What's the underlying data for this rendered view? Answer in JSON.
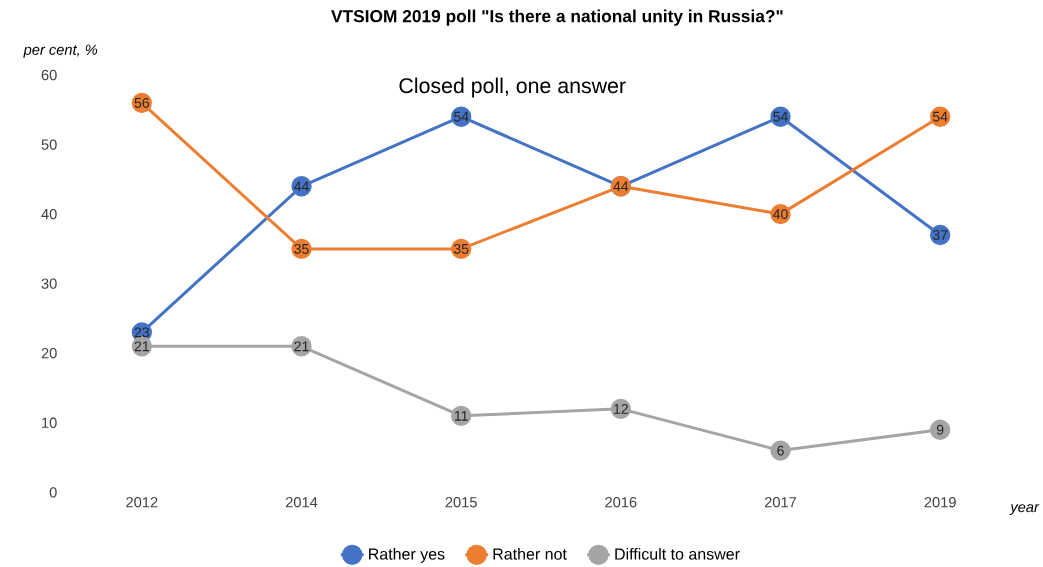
{
  "chart_data": {
    "type": "line",
    "title": "VTSIOM 2019 poll \"Is there a national unity in Russia?\"",
    "subtitle": "Closed poll, one answer",
    "ylabel": "per cent, %",
    "xlabel": "year",
    "categories": [
      "2012",
      "2014",
      "2015",
      "2016",
      "2017",
      "2019"
    ],
    "series": [
      {
        "name": "Rather yes",
        "color": "#4472c4",
        "values": [
          23,
          44,
          54,
          44,
          54,
          37
        ],
        "value_labels": [
          "23",
          "44",
          "54",
          "44",
          "54",
          "37"
        ]
      },
      {
        "name": "Rather not",
        "color": "#ed7d31",
        "values": [
          56,
          35,
          35,
          44,
          40,
          54
        ],
        "value_labels": [
          "56",
          "35",
          "35",
          null,
          "40",
          "54"
        ]
      },
      {
        "name": "Difficult to answer",
        "color": "#a5a5a5",
        "values": [
          21,
          21,
          11,
          12,
          6,
          9
        ],
        "value_labels": [
          "21",
          "21",
          "11",
          "12",
          "6",
          "9"
        ]
      }
    ],
    "ylim": [
      0,
      60
    ],
    "yticks": [
      0,
      10,
      20,
      30,
      40,
      50,
      60
    ],
    "legend": "bottom",
    "marker": "circle",
    "line_style": "solid"
  }
}
